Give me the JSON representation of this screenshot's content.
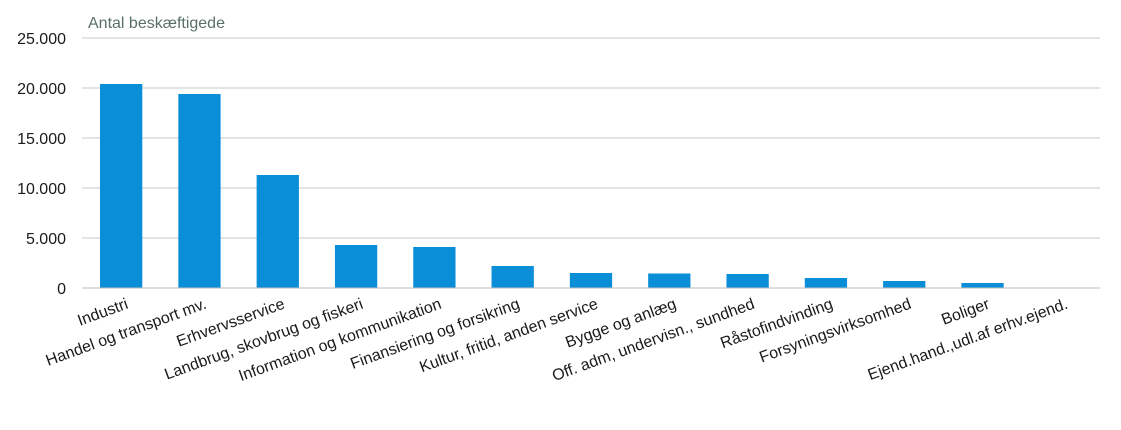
{
  "chart_data": {
    "type": "bar",
    "ylabel": "Antal beskæftigede",
    "ylim": [
      0,
      25000
    ],
    "yticks": [
      0,
      5000,
      10000,
      15000,
      20000,
      25000
    ],
    "ytick_labels": [
      "0",
      "5.000",
      "10.000",
      "15.000",
      "20.000",
      "25.000"
    ],
    "grid": true,
    "categories": [
      "Industri",
      "Handel og transport mv.",
      "Erhvervsservice",
      "Landbrug, skovbrug og fiskeri",
      "Information og kommunikation",
      "Finansiering og forsikring",
      "Kultur, fritid, anden service",
      "Bygge og anlæg",
      "Off. adm, undervisn., sundhed",
      "Råstofindvinding",
      "Forsyningsvirksomhed",
      "Boliger",
      "Ejend.hand.,udl.af erhv.ejend."
    ],
    "values": [
      20400,
      19400,
      11300,
      4300,
      4100,
      2200,
      1500,
      1450,
      1400,
      1000,
      700,
      500,
      0
    ],
    "bar_color": "#0a8ed8"
  }
}
